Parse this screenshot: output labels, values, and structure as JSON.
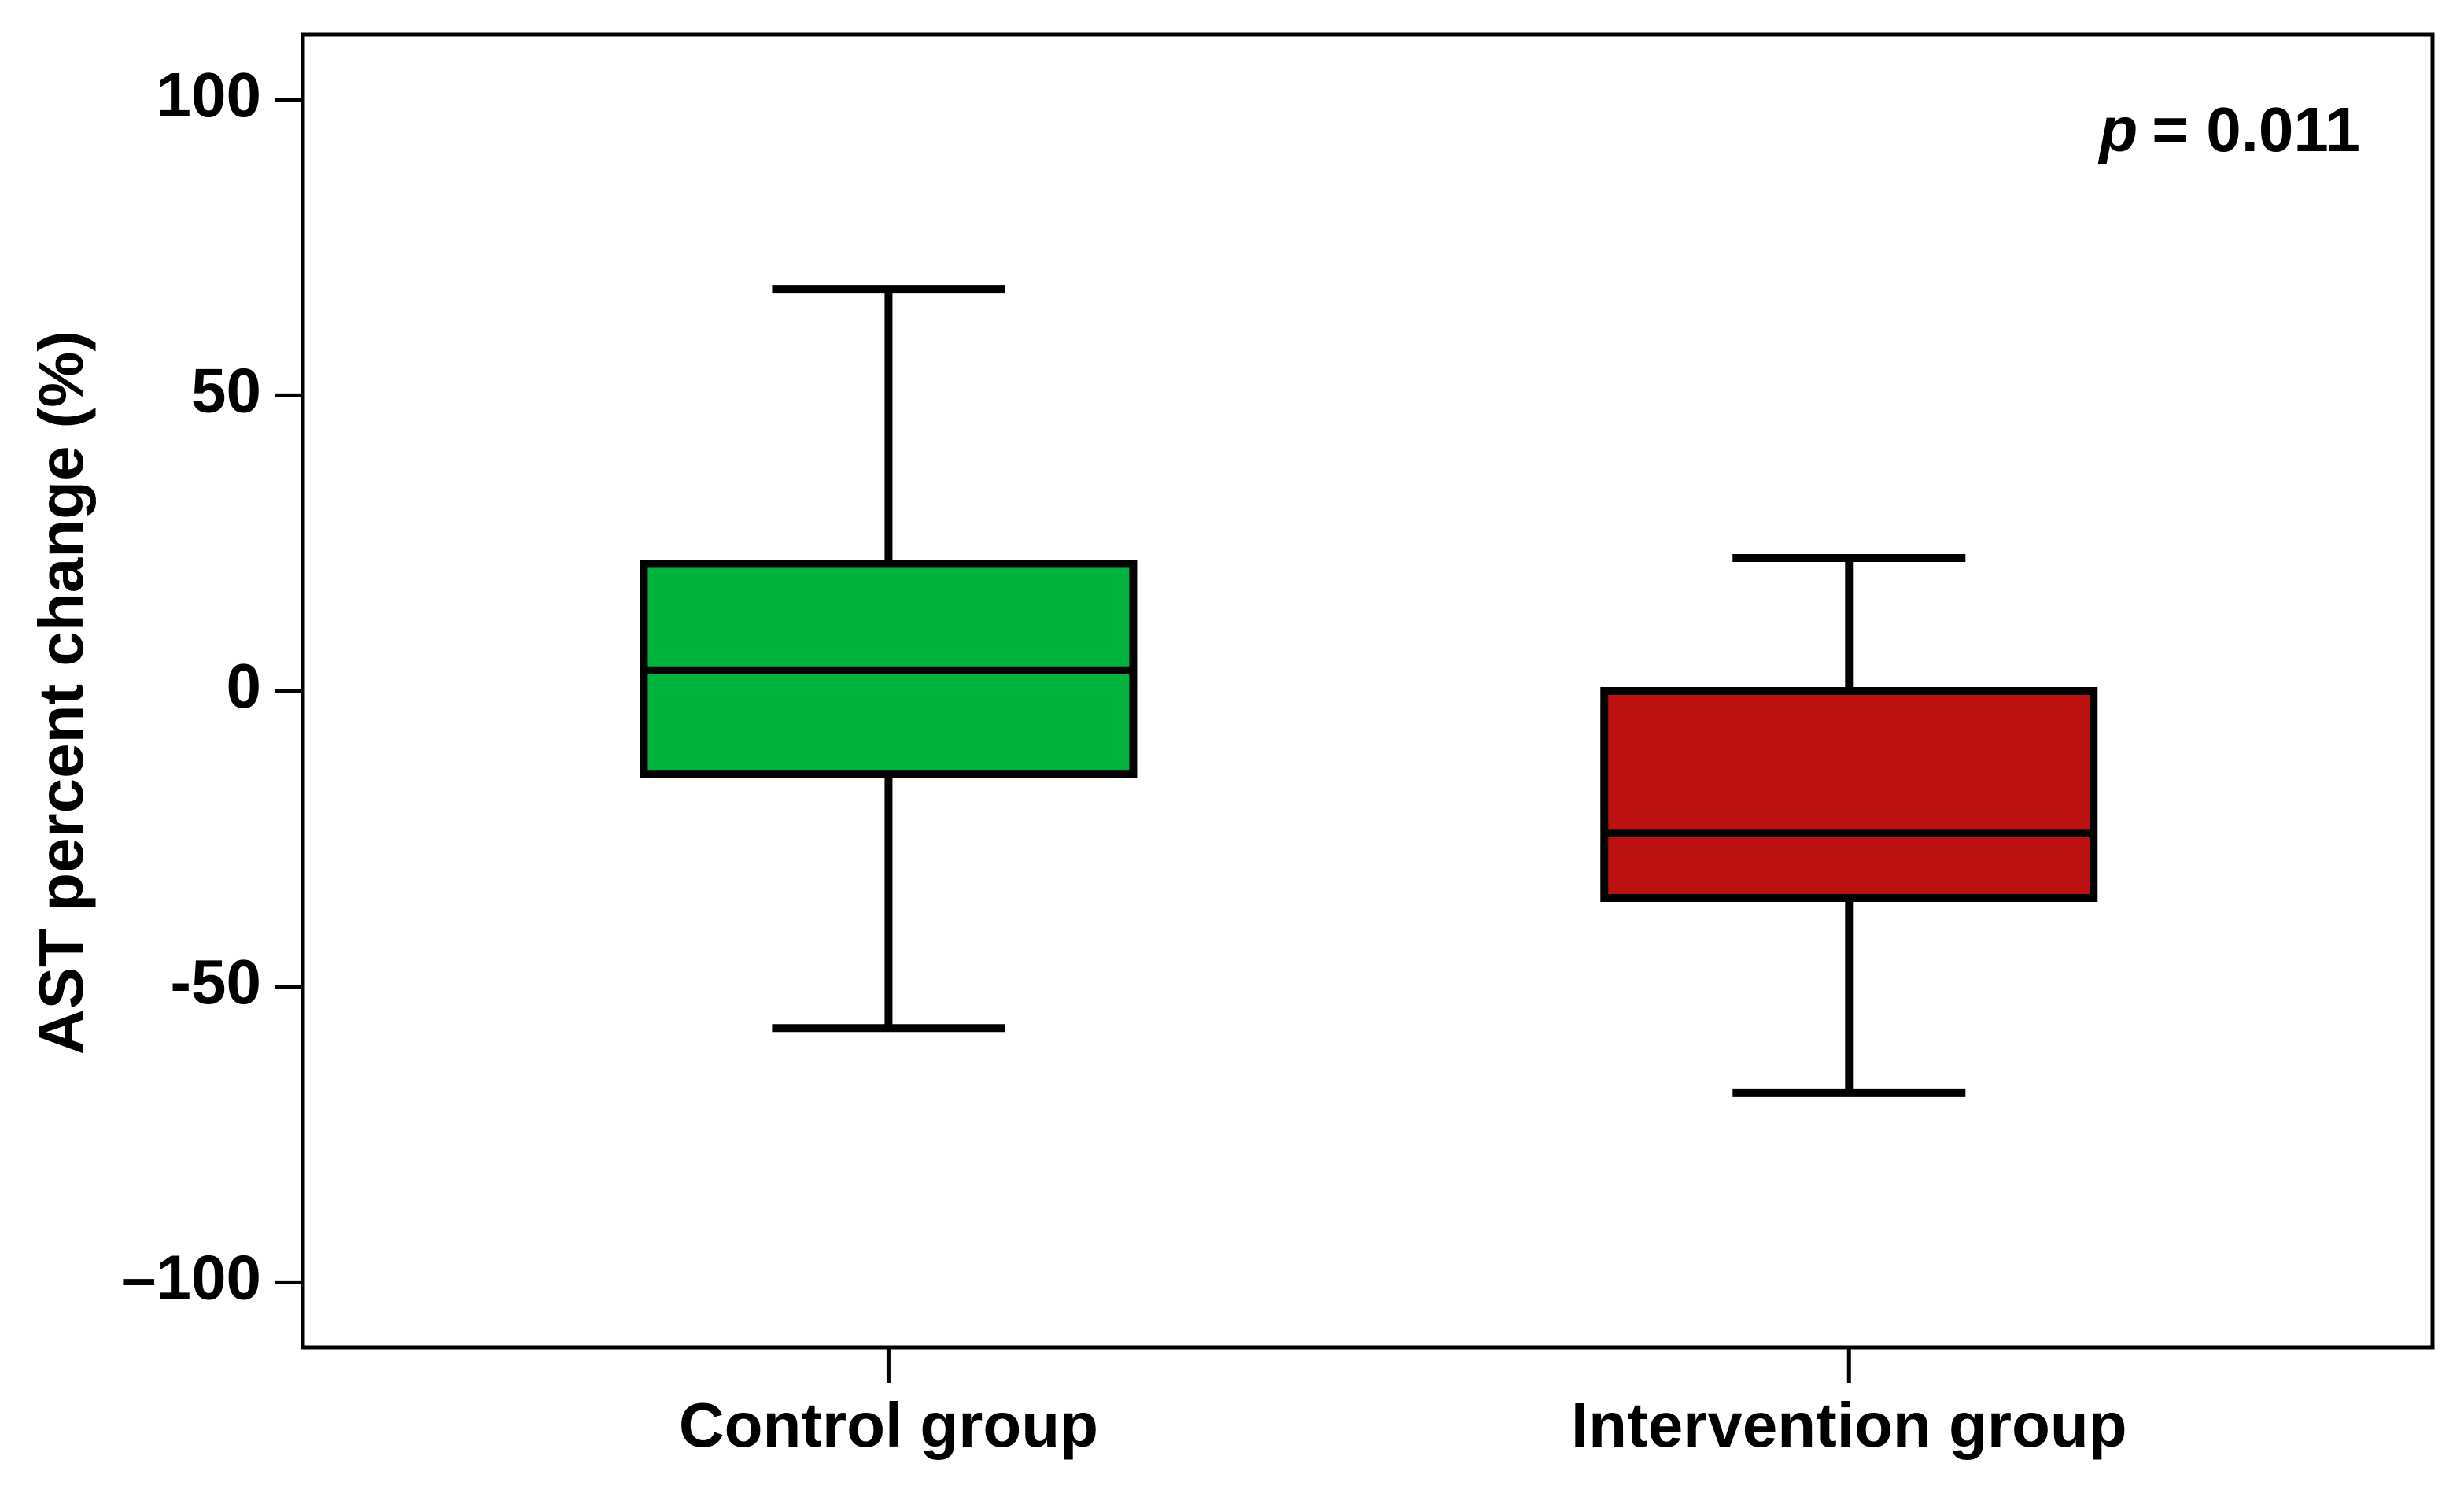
{
  "chart_data": {
    "type": "box",
    "y_label": "AST percent change (%)",
    "annotation_variable": "p",
    "annotation_text": "= 0.011",
    "categories": [
      "Control group",
      "Intervention group"
    ],
    "boxes": [
      {
        "min": -57,
        "q1": -14,
        "median": 3.5,
        "q3": 21.5,
        "max": 68,
        "color": "#00b33c"
      },
      {
        "min": -68,
        "q1": -35,
        "median": -24,
        "q3": 0,
        "max": 22.5,
        "color": "#bd1111"
      }
    ],
    "ylim": [
      -111,
      111
    ],
    "yticks": [
      100,
      50,
      0,
      -50,
      {
        "value": -100,
        "label": "–100"
      }
    ]
  }
}
